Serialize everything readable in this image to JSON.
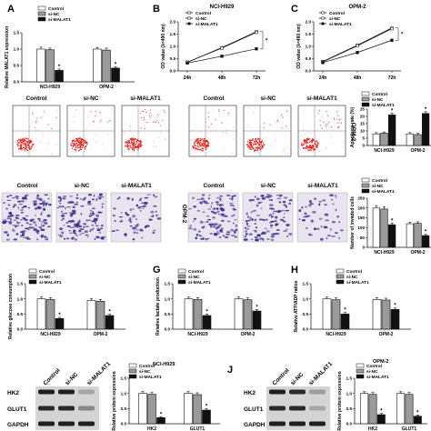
{
  "figure": {
    "panel_letters": [
      "A",
      "B",
      "C",
      "G",
      "H",
      "J"
    ],
    "legend_labels": [
      "Control",
      "si-NC",
      "si-MALAT1"
    ],
    "fill_colors": [
      "#ffffff",
      "#9a9a9a",
      "#111111"
    ],
    "sample_labels": [
      "Control",
      "si-NC",
      "si-MALAT1"
    ],
    "side_labels": [
      "OPM-2",
      "OPM-2"
    ],
    "blot_lanes": [
      "Control",
      "si-NC",
      "si-MALAT1"
    ],
    "blot_proteins": [
      "HK2",
      "GLUT1",
      "GAPDH"
    ],
    "flow_color": "#e0211b",
    "invasion_stain_color": "#3a2a8a"
  },
  "chart_data": [
    {
      "id": "A",
      "type": "bar",
      "ylabel": "Relative MALAT1 expression",
      "categories": [
        "NCI-H929",
        "OPM-2"
      ],
      "ylim": [
        0,
        1.5
      ],
      "yticks": [
        "0.0",
        "0.5",
        "1.0",
        "1.5"
      ],
      "series": [
        {
          "name": "Control",
          "values": [
            1.0,
            1.0
          ]
        },
        {
          "name": "si-NC",
          "values": [
            0.98,
            0.97
          ]
        },
        {
          "name": "si-MALAT1",
          "values": [
            0.35,
            0.42
          ]
        }
      ],
      "errors": [
        [
          0.06,
          0.05
        ],
        [
          0.05,
          0.06
        ],
        [
          0.04,
          0.04
        ]
      ],
      "stars": [
        2
      ]
    },
    {
      "id": "B",
      "type": "line",
      "title": "NCI-H929",
      "ylabel": "OD value (λ=490 nm)",
      "x": [
        "24h",
        "48h",
        "72h"
      ],
      "ylim": [
        0,
        2.0
      ],
      "yticks": [
        "0.0",
        "0.5",
        "1.0",
        "1.5",
        "2.0"
      ],
      "series": [
        {
          "name": "Control",
          "values": [
            0.35,
            0.95,
            1.6
          ]
        },
        {
          "name": "si-NC",
          "values": [
            0.36,
            0.93,
            1.57
          ]
        },
        {
          "name": "si-MALAT1",
          "values": [
            0.32,
            0.6,
            0.9
          ]
        }
      ],
      "star": "*"
    },
    {
      "id": "C",
      "type": "line",
      "title": "OPM-2",
      "ylabel": "OD value (λ=490 nm)",
      "x": [
        "24h",
        "48h",
        "72h"
      ],
      "ylim": [
        0,
        2.0
      ],
      "yticks": [
        "0.0",
        "0.5",
        "1.0",
        "1.5",
        "2.0"
      ],
      "series": [
        {
          "name": "Control",
          "values": [
            0.38,
            1.05,
            1.75
          ]
        },
        {
          "name": "si-NC",
          "values": [
            0.37,
            1.02,
            1.72
          ]
        },
        {
          "name": "si-MALAT1",
          "values": [
            0.34,
            0.75,
            1.25
          ]
        }
      ],
      "star": "*"
    },
    {
      "id": "apoptosis",
      "type": "bar",
      "ylabel": "Apoptosis rate (%)",
      "categories": [
        "NCI-H929",
        "OPM-2"
      ],
      "ylim": [
        0,
        25
      ],
      "yticks": [
        "0",
        "5",
        "10",
        "15",
        "20",
        "25"
      ],
      "series": [
        {
          "name": "Control",
          "values": [
            8,
            8
          ]
        },
        {
          "name": "si-NC",
          "values": [
            8.5,
            7.5
          ]
        },
        {
          "name": "si-MALAT1",
          "values": [
            21,
            22
          ]
        }
      ],
      "errors": [
        [
          0.8,
          0.8
        ],
        [
          0.8,
          0.8
        ],
        [
          1.2,
          1.2
        ]
      ],
      "stars": [
        2
      ]
    },
    {
      "id": "invasion",
      "type": "bar",
      "ylabel": "Number of invaded cells",
      "categories": [
        "NCI-H929",
        "OPM-2"
      ],
      "ylim": [
        0,
        250
      ],
      "yticks": [
        "0",
        "50",
        "100",
        "150",
        "200",
        "250"
      ],
      "series": [
        {
          "name": "Control",
          "values": [
            200,
            120
          ]
        },
        {
          "name": "si-NC",
          "values": [
            195,
            122
          ]
        },
        {
          "name": "si-MALAT1",
          "values": [
            115,
            60
          ]
        }
      ],
      "errors": [
        [
          12,
          8
        ],
        [
          12,
          8
        ],
        [
          8,
          6
        ]
      ],
      "stars": [
        2
      ]
    },
    {
      "id": "glucose",
      "type": "bar",
      "ylabel": "Relative glucose consumption",
      "categories": [
        "NCI-H929",
        "OPM-2"
      ],
      "ylim": [
        0,
        1.5
      ],
      "yticks": [
        "0.0",
        "0.5",
        "1.0",
        "1.5"
      ],
      "series": [
        {
          "name": "Control",
          "values": [
            1.0,
            0.95
          ]
        },
        {
          "name": "si-NC",
          "values": [
            0.98,
            0.92
          ]
        },
        {
          "name": "si-MALAT1",
          "values": [
            0.35,
            0.45
          ]
        }
      ],
      "errors": [
        [
          0.06,
          0.06
        ],
        [
          0.06,
          0.06
        ],
        [
          0.04,
          0.04
        ]
      ],
      "stars": [
        2
      ]
    },
    {
      "id": "G",
      "type": "bar",
      "ylabel": "Relative lactate production",
      "categories": [
        "NCI-H929",
        "OPM-2"
      ],
      "ylim": [
        0,
        1.5
      ],
      "yticks": [
        "0.0",
        "0.5",
        "1.0",
        "1.5"
      ],
      "series": [
        {
          "name": "Control",
          "values": [
            1.0,
            1.0
          ]
        },
        {
          "name": "si-NC",
          "values": [
            0.98,
            0.97
          ]
        },
        {
          "name": "si-MALAT1",
          "values": [
            0.45,
            0.6
          ]
        }
      ],
      "errors": [
        [
          0.06,
          0.06
        ],
        [
          0.06,
          0.06
        ],
        [
          0.05,
          0.05
        ]
      ],
      "stars": [
        2
      ]
    },
    {
      "id": "H",
      "type": "bar",
      "ylabel": "Relative ATP/ADP ratios",
      "categories": [
        "NCI-H929",
        "OPM-2"
      ],
      "ylim": [
        0,
        1.5
      ],
      "yticks": [
        "0.0",
        "0.5",
        "1.0",
        "1.5"
      ],
      "series": [
        {
          "name": "Control",
          "values": [
            1.0,
            0.98
          ]
        },
        {
          "name": "si-NC",
          "values": [
            0.97,
            0.96
          ]
        },
        {
          "name": "si-MALAT1",
          "values": [
            0.5,
            0.65
          ]
        }
      ],
      "errors": [
        [
          0.06,
          0.06
        ],
        [
          0.06,
          0.06
        ],
        [
          0.05,
          0.05
        ]
      ],
      "stars": [
        2
      ]
    },
    {
      "id": "wb1",
      "type": "bar",
      "title": "NCI-H929",
      "ylabel": "Relative protein expression",
      "categories": [
        "HK2",
        "GLUT1"
      ],
      "ylim": [
        0,
        1.5
      ],
      "yticks": [
        "0.0",
        "0.5",
        "1.0",
        "1.5"
      ],
      "series": [
        {
          "name": "Control",
          "values": [
            1.0,
            1.0
          ]
        },
        {
          "name": "si-NC",
          "values": [
            0.97,
            0.96
          ]
        },
        {
          "name": "si-MALAT1",
          "values": [
            0.2,
            0.45
          ]
        }
      ],
      "errors": [
        [
          0.06,
          0.06
        ],
        [
          0.06,
          0.06
        ],
        [
          0.03,
          0.05
        ]
      ],
      "stars": [
        2
      ]
    },
    {
      "id": "J",
      "type": "bar",
      "title": "OPM-2",
      "ylabel": "Relative protein expression",
      "categories": [
        "HK2",
        "GLUT1"
      ],
      "ylim": [
        0,
        1.5
      ],
      "yticks": [
        "0.0",
        "0.5",
        "1.0",
        "1.5"
      ],
      "series": [
        {
          "name": "Control",
          "values": [
            1.0,
            1.0
          ]
        },
        {
          "name": "si-NC",
          "values": [
            0.97,
            0.97
          ]
        },
        {
          "name": "si-MALAT1",
          "values": [
            0.3,
            0.25
          ]
        }
      ],
      "errors": [
        [
          0.06,
          0.06
        ],
        [
          0.06,
          0.06
        ],
        [
          0.04,
          0.04
        ]
      ],
      "stars": [
        2
      ]
    }
  ]
}
